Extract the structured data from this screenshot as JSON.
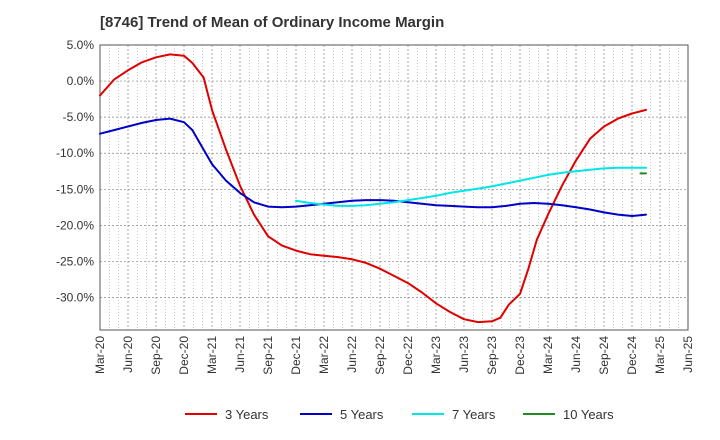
{
  "chart_data": {
    "type": "line",
    "title": "[8746]  Trend of Mean of Ordinary Income Margin",
    "xlabel": "",
    "ylabel": "",
    "x_ticks": [
      "Mar-20",
      "Jun-20",
      "Sep-20",
      "Dec-20",
      "Mar-21",
      "Jun-21",
      "Sep-21",
      "Dec-21",
      "Mar-22",
      "Jun-22",
      "Sep-22",
      "Dec-22",
      "Mar-23",
      "Jun-23",
      "Sep-23",
      "Dec-23",
      "Mar-24",
      "Jun-24",
      "Sep-24",
      "Dec-24",
      "Mar-25",
      "Jun-25"
    ],
    "y_ticks": [
      "5.0%",
      "0.0%",
      "-5.0%",
      "-10.0%",
      "-15.0%",
      "-20.0%",
      "-25.0%",
      "-30.0%"
    ],
    "y_tick_values": [
      5,
      0,
      -5,
      -10,
      -15,
      -20,
      -25,
      -30
    ],
    "ylim": [
      -34.5,
      5
    ],
    "grid": true,
    "legend_position": "bottom",
    "series": [
      {
        "name": "3 Years",
        "color": "#e00000",
        "points": [
          [
            0,
            -2.0
          ],
          [
            0.5,
            0.2
          ],
          [
            1,
            1.5
          ],
          [
            1.5,
            2.6
          ],
          [
            2,
            3.3
          ],
          [
            2.5,
            3.7
          ],
          [
            3,
            3.5
          ],
          [
            3.3,
            2.5
          ],
          [
            3.7,
            0.5
          ],
          [
            4,
            -4.0
          ],
          [
            4.5,
            -9.5
          ],
          [
            5,
            -14.5
          ],
          [
            5.5,
            -18.5
          ],
          [
            6,
            -21.5
          ],
          [
            6.5,
            -22.8
          ],
          [
            7,
            -23.5
          ],
          [
            7.5,
            -24.0
          ],
          [
            8,
            -24.2
          ],
          [
            8.5,
            -24.4
          ],
          [
            9,
            -24.7
          ],
          [
            9.5,
            -25.2
          ],
          [
            10,
            -26.0
          ],
          [
            10.5,
            -27.0
          ],
          [
            11,
            -28.0
          ],
          [
            11.5,
            -29.3
          ],
          [
            12,
            -30.8
          ],
          [
            12.5,
            -32.0
          ],
          [
            13,
            -33.0
          ],
          [
            13.5,
            -33.4
          ],
          [
            14,
            -33.3
          ],
          [
            14.3,
            -32.8
          ],
          [
            14.6,
            -31.0
          ],
          [
            15,
            -29.5
          ],
          [
            15.3,
            -26.0
          ],
          [
            15.6,
            -22.0
          ],
          [
            16,
            -18.5
          ],
          [
            16.5,
            -14.5
          ],
          [
            17,
            -11.0
          ],
          [
            17.5,
            -8.0
          ],
          [
            18,
            -6.3
          ],
          [
            18.5,
            -5.2
          ],
          [
            19,
            -4.5
          ],
          [
            19.5,
            -4.0
          ]
        ]
      },
      {
        "name": "5 Years",
        "color": "#0000c8",
        "points": [
          [
            0,
            -7.3
          ],
          [
            0.5,
            -6.8
          ],
          [
            1,
            -6.3
          ],
          [
            1.5,
            -5.8
          ],
          [
            2,
            -5.4
          ],
          [
            2.5,
            -5.2
          ],
          [
            3,
            -5.7
          ],
          [
            3.3,
            -6.8
          ],
          [
            3.7,
            -9.5
          ],
          [
            4,
            -11.5
          ],
          [
            4.5,
            -13.8
          ],
          [
            5,
            -15.5
          ],
          [
            5.5,
            -16.8
          ],
          [
            6,
            -17.4
          ],
          [
            6.5,
            -17.5
          ],
          [
            7,
            -17.4
          ],
          [
            7.5,
            -17.2
          ],
          [
            8,
            -17.0
          ],
          [
            8.5,
            -16.8
          ],
          [
            9,
            -16.6
          ],
          [
            9.5,
            -16.5
          ],
          [
            10,
            -16.5
          ],
          [
            10.5,
            -16.6
          ],
          [
            11,
            -16.8
          ],
          [
            11.5,
            -17.0
          ],
          [
            12,
            -17.2
          ],
          [
            12.5,
            -17.3
          ],
          [
            13,
            -17.4
          ],
          [
            13.5,
            -17.5
          ],
          [
            14,
            -17.5
          ],
          [
            14.5,
            -17.3
          ],
          [
            15,
            -17.0
          ],
          [
            15.5,
            -16.9
          ],
          [
            16,
            -17.0
          ],
          [
            16.5,
            -17.2
          ],
          [
            17,
            -17.5
          ],
          [
            17.5,
            -17.8
          ],
          [
            18,
            -18.2
          ],
          [
            18.5,
            -18.5
          ],
          [
            19,
            -18.7
          ],
          [
            19.5,
            -18.5
          ]
        ]
      },
      {
        "name": "7 Years",
        "color": "#00e6e6",
        "points": [
          [
            7,
            -16.6
          ],
          [
            7.5,
            -16.9
          ],
          [
            8,
            -17.1
          ],
          [
            8.5,
            -17.3
          ],
          [
            9,
            -17.3
          ],
          [
            9.5,
            -17.2
          ],
          [
            10,
            -17.0
          ],
          [
            10.5,
            -16.8
          ],
          [
            11,
            -16.5
          ],
          [
            11.5,
            -16.2
          ],
          [
            12,
            -15.9
          ],
          [
            12.5,
            -15.5
          ],
          [
            13,
            -15.2
          ],
          [
            13.5,
            -14.9
          ],
          [
            14,
            -14.6
          ],
          [
            14.5,
            -14.2
          ],
          [
            15,
            -13.8
          ],
          [
            15.5,
            -13.4
          ],
          [
            16,
            -13.0
          ],
          [
            16.5,
            -12.7
          ],
          [
            17,
            -12.5
          ],
          [
            17.5,
            -12.3
          ],
          [
            18,
            -12.1
          ],
          [
            18.5,
            -12.0
          ],
          [
            19,
            -12.0
          ],
          [
            19.5,
            -12.0
          ]
        ]
      },
      {
        "name": "10 Years",
        "color": "#228b22",
        "points": [
          [
            19.3,
            -12.8
          ],
          [
            19.5,
            -12.8
          ]
        ]
      }
    ]
  }
}
